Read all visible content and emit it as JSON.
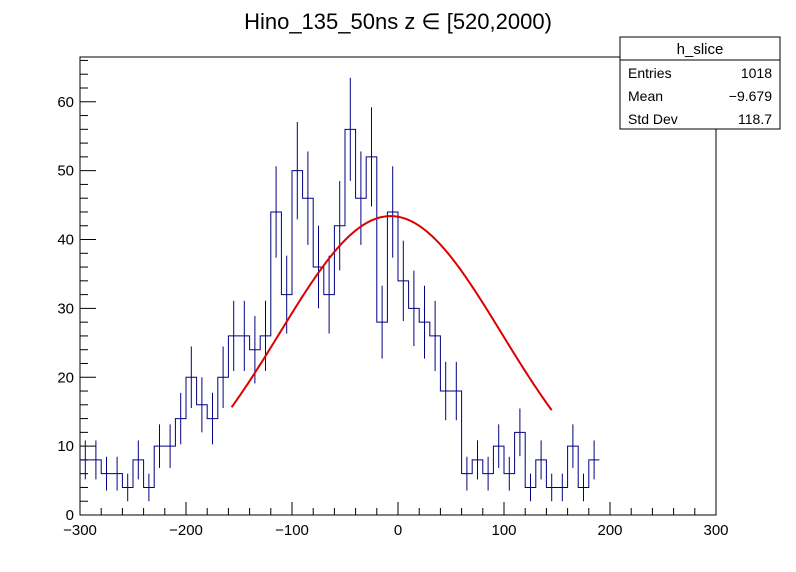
{
  "chart_data": {
    "type": "histogram",
    "title": "Hino_135_50ns z  ∈ [520,2000)",
    "xlabel": "",
    "ylabel": "",
    "xlim": [
      -300,
      300
    ],
    "ylim": [
      0,
      66.5
    ],
    "x_ticks": [
      -300,
      -200,
      -100,
      0,
      100,
      200,
      300
    ],
    "x_tick_labels": [
      "−300",
      "−200",
      "−100",
      "0",
      "100",
      "200",
      "300"
    ],
    "y_ticks": [
      0,
      10,
      20,
      30,
      40,
      50,
      60
    ],
    "y_tick_labels": [
      "0",
      "10",
      "20",
      "30",
      "40",
      "50",
      "60"
    ],
    "bin_width": 10,
    "bins_start": -300,
    "counts": [
      8,
      8,
      6,
      6,
      4,
      8,
      4,
      10,
      10,
      14,
      20,
      16,
      14,
      20,
      26,
      26,
      24,
      26,
      44,
      32,
      50,
      46,
      36,
      32,
      42,
      56,
      46,
      52,
      28,
      44,
      34,
      30,
      28,
      26,
      18,
      18,
      6,
      8,
      6,
      10,
      6,
      12,
      4,
      8,
      4,
      4,
      10,
      4,
      8
    ],
    "colors": {
      "histogram": "#000080",
      "fit": "#dd0000",
      "axes": "#000000"
    },
    "fit": {
      "type": "gaussian",
      "amplitude": 43.4,
      "mean": -7,
      "sigma": 105,
      "range": [
        -157,
        145
      ]
    },
    "stats_box": {
      "name": "h_slice",
      "rows": [
        {
          "label": "Entries",
          "value": "1018"
        },
        {
          "label": "Mean",
          "value": "−9.679"
        },
        {
          "label": "Std Dev",
          "value": "118.7"
        }
      ]
    }
  }
}
